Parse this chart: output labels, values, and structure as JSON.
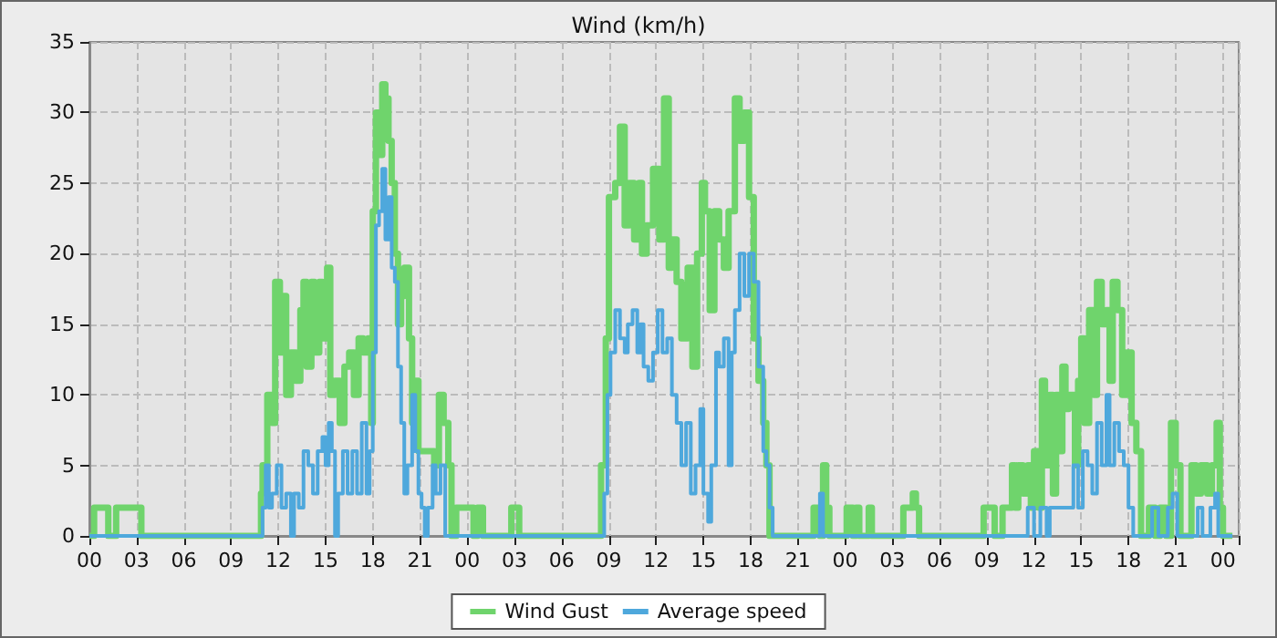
{
  "chart_data": {
    "type": "step",
    "title": "Wind (km/h)",
    "xlim": [
      0,
      73
    ],
    "xticks": [
      {
        "value": 0,
        "label": "00"
      },
      {
        "value": 3,
        "label": "03"
      },
      {
        "value": 6,
        "label": "06"
      },
      {
        "value": 9,
        "label": "09"
      },
      {
        "value": 12,
        "label": "12"
      },
      {
        "value": 15,
        "label": "15"
      },
      {
        "value": 18,
        "label": "18"
      },
      {
        "value": 21,
        "label": "21"
      },
      {
        "value": 24,
        "label": "00"
      },
      {
        "value": 27,
        "label": "03"
      },
      {
        "value": 30,
        "label": "06"
      },
      {
        "value": 33,
        "label": "09"
      },
      {
        "value": 36,
        "label": "12"
      },
      {
        "value": 39,
        "label": "15"
      },
      {
        "value": 42,
        "label": "18"
      },
      {
        "value": 45,
        "label": "21"
      },
      {
        "value": 48,
        "label": "00"
      },
      {
        "value": 51,
        "label": "03"
      },
      {
        "value": 54,
        "label": "06"
      },
      {
        "value": 57,
        "label": "09"
      },
      {
        "value": 60,
        "label": "12"
      },
      {
        "value": 63,
        "label": "15"
      },
      {
        "value": 66,
        "label": "18"
      },
      {
        "value": 69,
        "label": "21"
      },
      {
        "value": 72,
        "label": "00"
      }
    ],
    "ylim": [
      0,
      35
    ],
    "yticks": [
      0,
      5,
      10,
      15,
      20,
      25,
      30,
      35
    ],
    "grid": true,
    "legend": "bottom",
    "marker": "none",
    "line_style": "solid",
    "series": [
      {
        "name": "Wind Gust",
        "color": "#6fd46c",
        "x": [
          0,
          0.3,
          1.2,
          1.7,
          3.3,
          10.9,
          11.0,
          11.3,
          11.6,
          11.8,
          12.1,
          12.3,
          12.5,
          12.8,
          13.1,
          13.4,
          13.6,
          13.8,
          14.1,
          14.3,
          14.6,
          14.8,
          15.1,
          15.3,
          15.6,
          15.9,
          16.2,
          16.5,
          16.8,
          17.1,
          17.4,
          17.7,
          17.9,
          18.0,
          18.2,
          18.4,
          18.6,
          18.8,
          19.0,
          19.2,
          19.4,
          19.6,
          19.8,
          20.0,
          20.3,
          20.5,
          20.7,
          20.9,
          21.9,
          22.2,
          22.5,
          22.8,
          23.0,
          23.3,
          24.4,
          24.65,
          25.0,
          26.8,
          27.3,
          32.5,
          32.8,
          33.0,
          33.4,
          33.7,
          34.0,
          34.3,
          34.6,
          34.9,
          35.1,
          35.4,
          35.8,
          36.2,
          36.5,
          36.8,
          37.0,
          37.3,
          37.6,
          38.0,
          38.3,
          38.6,
          38.9,
          39.1,
          39.4,
          39.7,
          40.0,
          40.3,
          40.6,
          41.0,
          41.3,
          41.6,
          41.9,
          42.2,
          42.5,
          42.8,
          43.0,
          43.2,
          46.0,
          46.4,
          46.6,
          46.8,
          47.0,
          48.1,
          48.5,
          48.7,
          48.9,
          49.5,
          49.7,
          51.7,
          52.3,
          52.5,
          52.7,
          56.8,
          57.5,
          58.0,
          58.6,
          58.8,
          59.0,
          59.3,
          59.6,
          59.8,
          60.0,
          60.3,
          60.5,
          60.7,
          61.0,
          61.2,
          61.4,
          61.6,
          61.8,
          62.0,
          62.2,
          62.6,
          62.8,
          63.0,
          63.2,
          63.5,
          63.8,
          64.0,
          64.3,
          64.6,
          64.8,
          65.0,
          65.3,
          65.6,
          65.9,
          66.2,
          66.5,
          66.8,
          67.3,
          67.7,
          68.0,
          68.4,
          68.7,
          69.0,
          69.3,
          70.0,
          70.3,
          70.6,
          71.0,
          71.3,
          71.6,
          71.8,
          72.0,
          72.6
        ],
        "values": [
          0,
          2,
          0,
          2,
          0,
          3,
          5,
          10,
          8,
          18,
          13,
          17,
          10,
          13,
          11,
          16,
          18,
          12,
          18,
          13,
          18,
          14,
          19,
          10,
          11,
          8,
          12,
          13,
          10,
          14,
          13,
          14,
          8,
          23,
          30,
          27,
          32,
          31,
          28,
          25,
          20,
          15,
          17,
          19,
          14,
          8,
          11,
          6,
          5,
          10,
          8,
          5,
          0,
          2,
          0,
          2,
          0,
          2,
          0,
          5,
          14,
          24,
          25,
          29,
          22,
          25,
          21,
          25,
          20,
          22,
          26,
          21,
          31,
          19,
          21,
          18,
          14,
          19,
          12,
          20,
          25,
          23,
          16,
          23,
          21,
          19,
          23,
          31,
          28,
          30,
          24,
          14,
          11,
          8,
          5,
          0,
          2,
          0,
          5,
          2,
          0,
          2,
          0,
          2,
          0,
          2,
          0,
          2,
          3,
          2,
          0,
          2,
          0,
          2,
          5,
          2,
          5,
          3,
          5,
          2,
          6,
          2,
          11,
          5,
          10,
          3,
          10,
          6,
          12,
          9,
          10,
          5,
          11,
          14,
          8,
          16,
          10,
          18,
          15,
          16,
          11,
          18,
          16,
          10,
          13,
          8,
          6,
          0,
          2,
          0,
          2,
          0,
          8,
          5,
          0,
          5,
          3,
          5,
          3,
          5,
          8,
          2,
          0,
          0
        ]
      },
      {
        "name": "Average speed",
        "color": "#4ea8dc",
        "x": [
          0,
          11.0,
          11.2,
          11.4,
          11.6,
          11.9,
          12.2,
          12.5,
          12.8,
          13.0,
          13.3,
          13.6,
          13.9,
          14.2,
          14.5,
          14.8,
          15.0,
          15.2,
          15.4,
          15.6,
          15.8,
          16.1,
          16.4,
          16.7,
          17.0,
          17.3,
          17.6,
          17.8,
          18.0,
          18.2,
          18.4,
          18.6,
          18.8,
          19.0,
          19.2,
          19.4,
          19.6,
          19.8,
          20.0,
          20.2,
          20.5,
          20.7,
          20.9,
          21.1,
          21.3,
          21.5,
          21.8,
          22.0,
          22.3,
          22.6,
          32.7,
          32.9,
          33.1,
          33.4,
          33.7,
          34.0,
          34.2,
          34.5,
          34.8,
          35.0,
          35.2,
          35.5,
          35.8,
          36.1,
          36.4,
          36.7,
          37.0,
          37.3,
          37.6,
          37.9,
          38.2,
          38.5,
          38.8,
          39.0,
          39.3,
          39.5,
          39.8,
          40.0,
          40.3,
          40.6,
          40.8,
          41.0,
          41.3,
          41.6,
          41.9,
          42.2,
          42.5,
          42.8,
          43.0,
          43.2,
          43.4,
          46.4,
          46.6,
          59.6,
          60.0,
          60.4,
          60.8,
          61.0,
          62.5,
          62.8,
          63.1,
          63.4,
          63.7,
          64.0,
          64.3,
          64.6,
          64.8,
          65.1,
          65.4,
          65.7,
          66.0,
          66.3,
          67.5,
          67.9,
          68.5,
          68.8,
          69.1,
          70.4,
          70.7,
          71.2,
          71.5,
          71.7,
          72.6
        ],
        "values": [
          0,
          2,
          5,
          2,
          3,
          5,
          2,
          3,
          0,
          3,
          2,
          6,
          5,
          3,
          6,
          7,
          5,
          8,
          6,
          0,
          3,
          6,
          3,
          6,
          3,
          8,
          3,
          6,
          13,
          22,
          23,
          26,
          21,
          24,
          19,
          18,
          12,
          8,
          3,
          5,
          10,
          6,
          3,
          2,
          0,
          2,
          5,
          3,
          5,
          0,
          3,
          10,
          13,
          16,
          14,
          13,
          15,
          16,
          13,
          15,
          12,
          11,
          13,
          16,
          13,
          14,
          10,
          8,
          5,
          8,
          3,
          5,
          9,
          3,
          1,
          5,
          13,
          12,
          14,
          5,
          13,
          16,
          20,
          17,
          20,
          18,
          12,
          6,
          5,
          2,
          0,
          3,
          0,
          2,
          0,
          2,
          0,
          2,
          5,
          2,
          6,
          5,
          3,
          8,
          5,
          10,
          5,
          8,
          6,
          5,
          2,
          0,
          2,
          0,
          2,
          3,
          0,
          2,
          0,
          2,
          3,
          0,
          0
        ]
      }
    ]
  }
}
